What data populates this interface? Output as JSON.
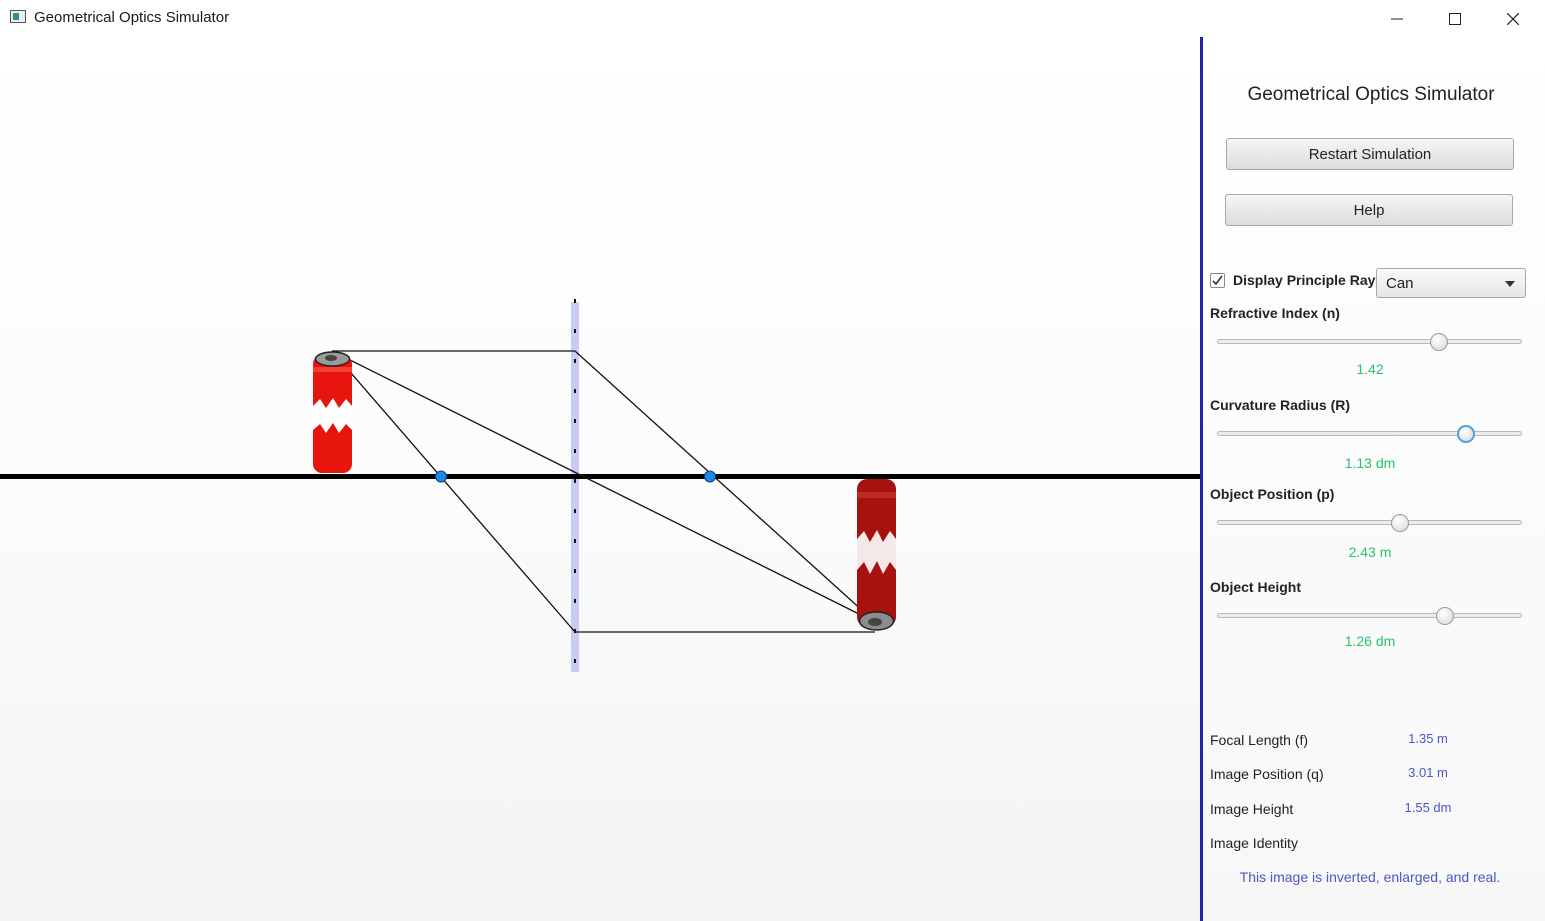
{
  "window": {
    "title": "Geometrical Optics Simulator",
    "minimize_icon": "minimize-icon",
    "maximize_icon": "maximize-icon",
    "close_icon": "close-icon"
  },
  "panel": {
    "title": "Geometrical Optics Simulator",
    "restart_label": "Restart Simulation",
    "help_label": "Help",
    "display_rays_label": "Display Principle Rays",
    "display_rays_checked": true,
    "object_select_value": "Can",
    "sliders": [
      {
        "label": "Refractive Index (n)",
        "value": "1.42",
        "fraction": 0.73
      },
      {
        "label": "Curvature Radius (R)",
        "value": "1.13 dm",
        "fraction": 0.82
      },
      {
        "label": "Object Position (p)",
        "value": "2.43 m",
        "fraction": 0.6
      },
      {
        "label": "Object Height",
        "value": "1.26 dm",
        "fraction": 0.75
      }
    ],
    "info": [
      {
        "label": "Focal Length (f)",
        "value": "1.35 m"
      },
      {
        "label": "Image Position (q)",
        "value": "3.01 m"
      },
      {
        "label": "Image Height",
        "value": "1.55 dm"
      }
    ],
    "identity_label": "Image Identity",
    "identity_text": "This image is inverted, enlarged, and real."
  },
  "colors": {
    "accent": "#2424a8",
    "slider_value": "#27c46b",
    "info_value": "#4b57c9",
    "can_red": "#e8140e",
    "image_can_red": "#a8120e",
    "focal_point": "#1e88e5",
    "lens": "#c8ccf4"
  }
}
